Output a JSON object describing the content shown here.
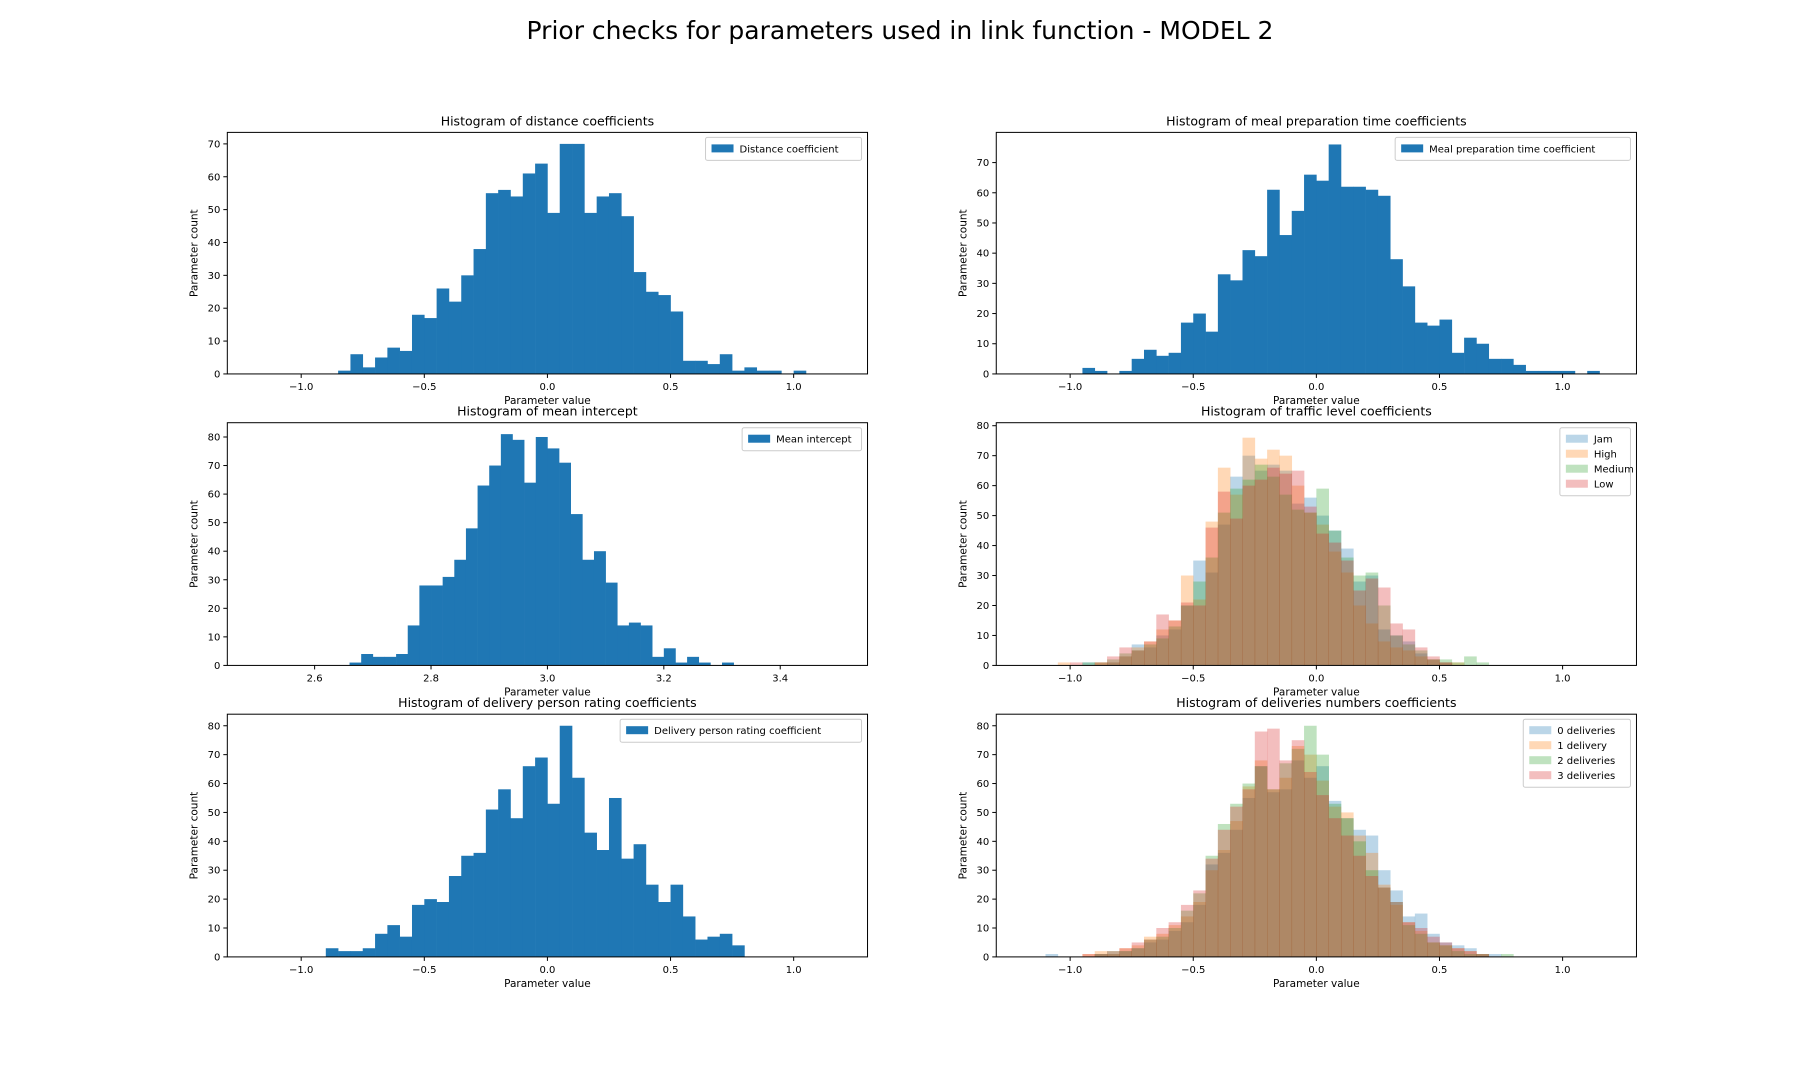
{
  "figure": {
    "title": "Prior checks for parameters used in link function - MODEL 2"
  },
  "colors": {
    "blue": "#1f77b4",
    "orange": "#ff7f0e",
    "green": "#2ca02c",
    "red": "#d62728"
  },
  "chart_data": [
    {
      "type": "bar",
      "title": "Histogram of distance coefficients",
      "xlabel": "Parameter value",
      "ylabel": "Parameter count",
      "xlim": [
        -1.3,
        1.3
      ],
      "ylim": [
        0,
        73.5
      ],
      "xticks": [
        -1.0,
        -0.5,
        0.0,
        0.5,
        1.0
      ],
      "yticks": [
        0,
        10,
        20,
        30,
        40,
        50,
        60,
        70
      ],
      "legend": "top-right",
      "bin_start": -0.85,
      "bin_width": 0.05,
      "series": [
        {
          "name": "Distance coefficient",
          "color": "#1f77b4",
          "alpha": 1.0,
          "values": [
            1,
            6,
            2,
            5,
            8,
            7,
            18,
            17,
            26,
            22,
            30,
            38,
            55,
            56,
            54,
            61,
            64,
            49,
            70,
            70,
            49,
            54,
            55,
            48,
            31,
            25,
            24,
            19,
            4,
            4,
            3,
            6,
            1,
            2,
            1,
            1,
            0,
            1
          ]
        }
      ]
    },
    {
      "type": "bar",
      "title": "Histogram of meal preparation time coefficients",
      "xlabel": "Parameter value",
      "ylabel": "Parameter count",
      "xlim": [
        -1.3,
        1.3
      ],
      "ylim": [
        0,
        80
      ],
      "xticks": [
        -1.0,
        -0.5,
        0.0,
        0.5,
        1.0
      ],
      "yticks": [
        0,
        10,
        20,
        30,
        40,
        50,
        60,
        70
      ],
      "legend": "top-right",
      "bin_start": -0.95,
      "bin_width": 0.05,
      "series": [
        {
          "name": "Meal preparation time coefficient",
          "color": "#1f77b4",
          "alpha": 1.0,
          "values": [
            2,
            1,
            0,
            1,
            5,
            8,
            6,
            7,
            17,
            20,
            14,
            33,
            31,
            41,
            39,
            61,
            46,
            54,
            66,
            64,
            76,
            62,
            62,
            61,
            59,
            38,
            29,
            17,
            16,
            18,
            7,
            12,
            10,
            5,
            5,
            3,
            1,
            1,
            1,
            1,
            0,
            1
          ]
        }
      ]
    },
    {
      "type": "bar",
      "title": "Histogram of mean intercept",
      "xlabel": "Parameter value",
      "ylabel": "Parameter count",
      "xlim": [
        2.45,
        3.55
      ],
      "ylim": [
        0,
        85
      ],
      "xticks": [
        2.6,
        2.8,
        3.0,
        3.2,
        3.4
      ],
      "yticks": [
        0,
        10,
        20,
        30,
        40,
        50,
        60,
        70,
        80
      ],
      "legend": "top-right",
      "bin_start": 2.66,
      "bin_width": 0.02,
      "series": [
        {
          "name": "Mean intercept",
          "color": "#1f77b4",
          "alpha": 1.0,
          "values": [
            1,
            4,
            3,
            3,
            4,
            14,
            28,
            28,
            31,
            37,
            48,
            63,
            70,
            81,
            79,
            64,
            80,
            76,
            71,
            53,
            37,
            40,
            29,
            14,
            15,
            14,
            3,
            6,
            1,
            3,
            1,
            0,
            1
          ]
        }
      ]
    },
    {
      "type": "bar",
      "title": "Histogram of traffic level coefficients",
      "xlabel": "Parameter value",
      "ylabel": "Parameter count",
      "xlim": [
        -1.3,
        1.3
      ],
      "ylim": [
        0,
        81
      ],
      "xticks": [
        -1.0,
        -0.5,
        0.0,
        0.5,
        1.0
      ],
      "yticks": [
        0,
        10,
        20,
        30,
        40,
        50,
        60,
        70,
        80
      ],
      "legend": "top-right",
      "bin_start": -1.05,
      "bin_width": 0.05,
      "series": [
        {
          "name": "Jam",
          "color": "#1f77b4",
          "alpha": 0.3,
          "values": [
            0,
            0,
            1,
            0,
            1,
            3,
            7,
            6,
            10,
            12,
            20,
            35,
            31,
            47,
            63,
            70,
            65,
            67,
            65,
            54,
            56,
            50,
            45,
            39,
            28,
            30,
            12,
            10,
            8,
            4,
            2,
            1,
            0,
            0,
            0,
            0,
            0
          ]
        },
        {
          "name": "High",
          "color": "#ff7f0e",
          "alpha": 0.3,
          "values": [
            1,
            0,
            0,
            1,
            1,
            3,
            6,
            8,
            12,
            15,
            30,
            22,
            48,
            66,
            57,
            76,
            69,
            72,
            70,
            60,
            51,
            47,
            38,
            31,
            20,
            14,
            8,
            6,
            5,
            3,
            2,
            1,
            1,
            0,
            0,
            0,
            0
          ]
        },
        {
          "name": "Medium",
          "color": "#2ca02c",
          "alpha": 0.3,
          "values": [
            0,
            0,
            1,
            1,
            2,
            4,
            5,
            7,
            9,
            13,
            20,
            28,
            36,
            51,
            59,
            62,
            67,
            63,
            57,
            52,
            51,
            59,
            45,
            36,
            30,
            31,
            20,
            10,
            7,
            5,
            2,
            2,
            1,
            3,
            1,
            0,
            0
          ]
        },
        {
          "name": "Low",
          "color": "#d62728",
          "alpha": 0.3,
          "values": [
            0,
            1,
            0,
            1,
            3,
            6,
            5,
            8,
            17,
            15,
            21,
            20,
            46,
            58,
            49,
            60,
            62,
            66,
            64,
            65,
            53,
            44,
            41,
            35,
            25,
            29,
            26,
            14,
            12,
            6,
            3,
            1,
            0,
            0,
            0,
            0,
            0
          ]
        }
      ]
    },
    {
      "type": "bar",
      "title": "Histogram of delivery person rating coefficients",
      "xlabel": "Parameter value",
      "ylabel": "Parameter count",
      "xlim": [
        -1.3,
        1.3
      ],
      "ylim": [
        0,
        84
      ],
      "xticks": [
        -1.0,
        -0.5,
        0.0,
        0.5,
        1.0
      ],
      "yticks": [
        0,
        10,
        20,
        30,
        40,
        50,
        60,
        70,
        80
      ],
      "legend": "top-right",
      "bin_start": -0.9,
      "bin_width": 0.05,
      "series": [
        {
          "name": "Delivery person rating coefficient",
          "color": "#1f77b4",
          "alpha": 1.0,
          "values": [
            3,
            2,
            2,
            3,
            8,
            11,
            7,
            18,
            20,
            19,
            28,
            35,
            36,
            51,
            58,
            48,
            66,
            69,
            53,
            80,
            62,
            43,
            37,
            55,
            34,
            39,
            25,
            19,
            25,
            14,
            6,
            7,
            8,
            4
          ]
        }
      ]
    },
    {
      "type": "bar",
      "title": "Histogram of deliveries numbers coefficients",
      "xlabel": "Parameter value",
      "ylabel": "Parameter count",
      "xlim": [
        -1.3,
        1.3
      ],
      "ylim": [
        0,
        84
      ],
      "xticks": [
        -1.0,
        -0.5,
        0.0,
        0.5,
        1.0
      ],
      "yticks": [
        0,
        10,
        20,
        30,
        40,
        50,
        60,
        70,
        80
      ],
      "legend": "top-right",
      "bin_start": -1.1,
      "bin_width": 0.05,
      "series": [
        {
          "name": "0 deliveries",
          "color": "#1f77b4",
          "alpha": 0.3,
          "values": [
            1,
            0,
            0,
            0,
            1,
            1,
            2,
            3,
            5,
            6,
            9,
            12,
            18,
            32,
            36,
            44,
            55,
            66,
            57,
            58,
            68,
            62,
            66,
            54,
            48,
            44,
            42,
            30,
            23,
            14,
            15,
            8,
            5,
            4,
            3,
            1,
            1,
            0
          ]
        },
        {
          "name": "1 delivery",
          "color": "#ff7f0e",
          "alpha": 0.3,
          "values": [
            0,
            0,
            0,
            1,
            2,
            1,
            3,
            4,
            7,
            8,
            11,
            14,
            19,
            30,
            37,
            47,
            59,
            68,
            58,
            62,
            73,
            70,
            61,
            52,
            50,
            42,
            36,
            25,
            18,
            12,
            9,
            5,
            4,
            3,
            2,
            1,
            0,
            0
          ]
        },
        {
          "name": "2 deliveries",
          "color": "#2ca02c",
          "alpha": 0.3,
          "values": [
            0,
            0,
            0,
            0,
            1,
            2,
            2,
            3,
            6,
            7,
            10,
            16,
            22,
            35,
            46,
            53,
            60,
            66,
            58,
            67,
            72,
            80,
            70,
            53,
            48,
            40,
            30,
            24,
            19,
            11,
            8,
            5,
            4,
            2,
            1,
            1,
            0,
            1
          ]
        },
        {
          "name": "3 deliveries",
          "color": "#d62728",
          "alpha": 0.3,
          "values": [
            0,
            0,
            0,
            1,
            1,
            2,
            3,
            5,
            6,
            10,
            12,
            18,
            23,
            34,
            44,
            52,
            58,
            78,
            79,
            68,
            75,
            64,
            56,
            48,
            42,
            35,
            28,
            24,
            19,
            12,
            10,
            7,
            5,
            3,
            2,
            1,
            0,
            0
          ]
        }
      ]
    }
  ]
}
